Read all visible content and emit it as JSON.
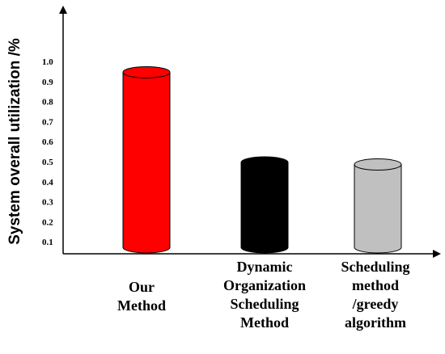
{
  "chart_data": {
    "type": "bar",
    "title": "",
    "xlabel": "",
    "ylabel": "System overall utilization /%",
    "ylim": [
      0.0,
      1.1
    ],
    "yticks": [
      "0.1",
      "0.2",
      "0.3",
      "0.4",
      "0.5",
      "0.6",
      "0.7",
      "0.8",
      "0.9",
      "1.0"
    ],
    "categories": [
      [
        "Our",
        "Method"
      ],
      [
        "Dynamic",
        "Organization",
        "Scheduling",
        "Method"
      ],
      [
        "Scheduling",
        "method",
        "/greedy",
        "algorithm"
      ]
    ],
    "values": [
      0.97,
      0.52,
      0.51
    ],
    "colors": [
      "#ff0000",
      "#000000",
      "#c0c0c0"
    ],
    "grid": false,
    "bar_style": "cylinder"
  }
}
